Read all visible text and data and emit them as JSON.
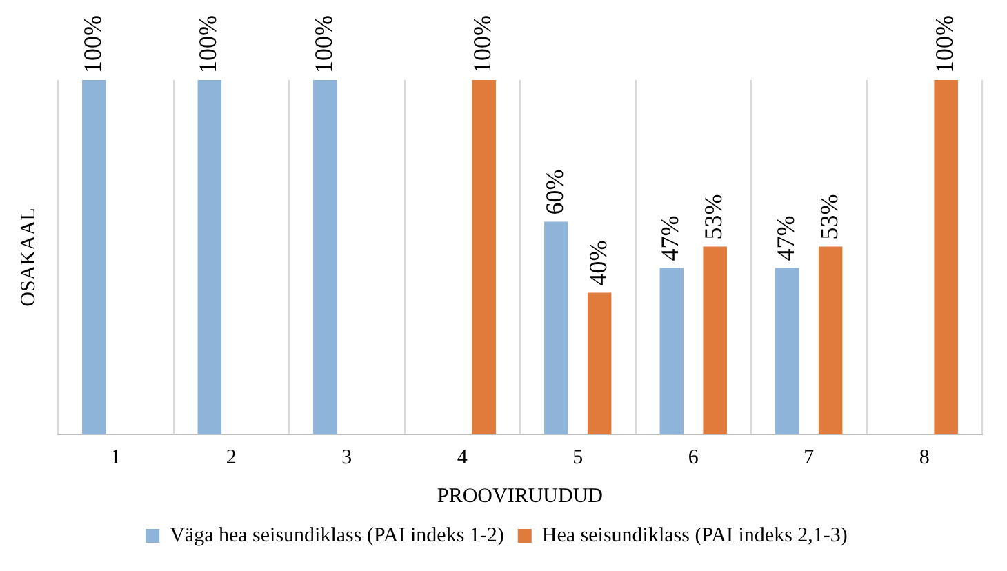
{
  "chart_data": {
    "type": "bar",
    "xlabel": "PROOVIRUUDUD",
    "ylabel": "OSAKAAL",
    "categories": [
      "1",
      "2",
      "3",
      "4",
      "5",
      "6",
      "7",
      "8"
    ],
    "series": [
      {
        "name": "Väga hea seisundiklass (PAI indeks 1-2)",
        "color": "#8eb4da",
        "values": [
          100,
          100,
          100,
          null,
          60,
          47,
          47,
          null
        ],
        "value_labels": [
          "100%",
          "100%",
          "100%",
          null,
          "60%",
          "47%",
          "47%",
          null
        ]
      },
      {
        "name": "Hea seisundiklass (PAI indeks 2,1-3)",
        "color": "#e07b3c",
        "values": [
          null,
          null,
          null,
          100,
          40,
          53,
          53,
          100
        ],
        "value_labels": [
          null,
          null,
          null,
          "100%",
          "40%",
          "53%",
          "53%",
          "100%"
        ]
      }
    ],
    "grid": "x",
    "legend": "bottom",
    "tick_labels": "x"
  }
}
